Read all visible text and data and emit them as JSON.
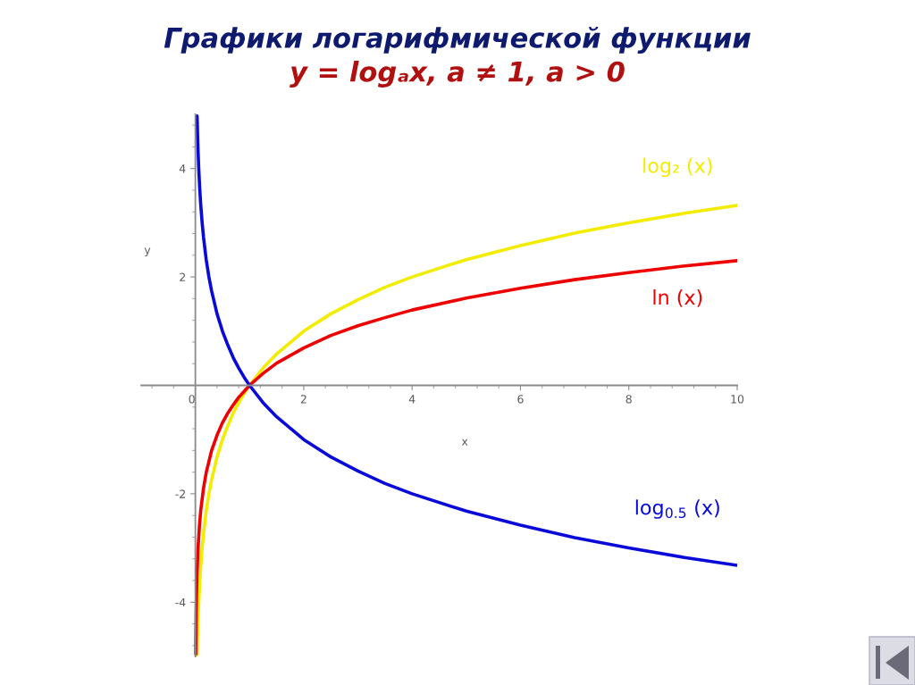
{
  "chart_data": {
    "type": "line",
    "title": "Графики логарифмической функции",
    "subtitle": "y = logₐx, a ≠ 1, a > 0",
    "xlabel": "x",
    "ylabel": "y",
    "xlim": [
      -1,
      10
    ],
    "ylim": [
      -5,
      5
    ],
    "xticks": [
      0,
      2,
      4,
      6,
      8,
      10
    ],
    "yticks": [
      -4,
      -2,
      2,
      4
    ],
    "legend": false,
    "line_style": "solid",
    "series": [
      {
        "name": "log₂ (x)",
        "color": "#f2ec00",
        "x": [
          0.032,
          0.04,
          0.05,
          0.0625,
          0.08,
          0.1,
          0.125,
          0.15,
          0.2,
          0.25,
          0.3,
          0.4,
          0.5,
          0.6,
          0.7,
          0.8,
          0.9,
          1,
          1.25,
          1.5,
          2,
          2.5,
          3,
          3.5,
          4,
          5,
          6,
          7,
          8,
          9,
          10
        ],
        "values": [
          -4.97,
          -4.64,
          -4.32,
          -4.0,
          -3.64,
          -3.32,
          -3.0,
          -2.74,
          -2.32,
          -2.0,
          -1.74,
          -1.32,
          -1.0,
          -0.74,
          -0.51,
          -0.32,
          -0.15,
          0,
          0.32,
          0.58,
          1.0,
          1.32,
          1.58,
          1.81,
          2.0,
          2.32,
          2.58,
          2.81,
          3.0,
          3.17,
          3.32
        ]
      },
      {
        "name": "ln (x)",
        "color": "#ee0000",
        "x": [
          0.007,
          0.01,
          0.015,
          0.02,
          0.03,
          0.05,
          0.075,
          0.1,
          0.15,
          0.2,
          0.3,
          0.4,
          0.5,
          0.6,
          0.7,
          0.8,
          0.9,
          1,
          1.25,
          1.5,
          2,
          2.5,
          3,
          3.5,
          4,
          5,
          6,
          7,
          8,
          9,
          10
        ],
        "values": [
          -4.96,
          -4.61,
          -4.2,
          -3.91,
          -3.51,
          -3.0,
          -2.59,
          -2.3,
          -1.9,
          -1.61,
          -1.2,
          -0.92,
          -0.69,
          -0.51,
          -0.36,
          -0.22,
          -0.11,
          0,
          0.22,
          0.41,
          0.69,
          0.92,
          1.1,
          1.25,
          1.39,
          1.61,
          1.79,
          1.95,
          2.08,
          2.2,
          2.3
        ]
      },
      {
        "name": "log$_{0.5}$ (x)",
        "color": "#0a0ad8",
        "x": [
          0.032,
          0.04,
          0.05,
          0.0625,
          0.08,
          0.1,
          0.125,
          0.15,
          0.2,
          0.25,
          0.3,
          0.4,
          0.5,
          0.6,
          0.7,
          0.8,
          0.9,
          1,
          1.25,
          1.5,
          2,
          2.5,
          3,
          3.5,
          4,
          5,
          6,
          7,
          8,
          9,
          10
        ],
        "values": [
          4.97,
          4.64,
          4.32,
          4.0,
          3.64,
          3.32,
          3.0,
          2.74,
          2.32,
          2.0,
          1.74,
          1.32,
          1.0,
          0.74,
          0.51,
          0.32,
          0.15,
          0,
          -0.32,
          -0.58,
          -1.0,
          -1.32,
          -1.58,
          -1.81,
          -2.0,
          -2.32,
          -2.58,
          -2.81,
          -3.0,
          -3.17,
          -3.32
        ]
      }
    ]
  }
}
